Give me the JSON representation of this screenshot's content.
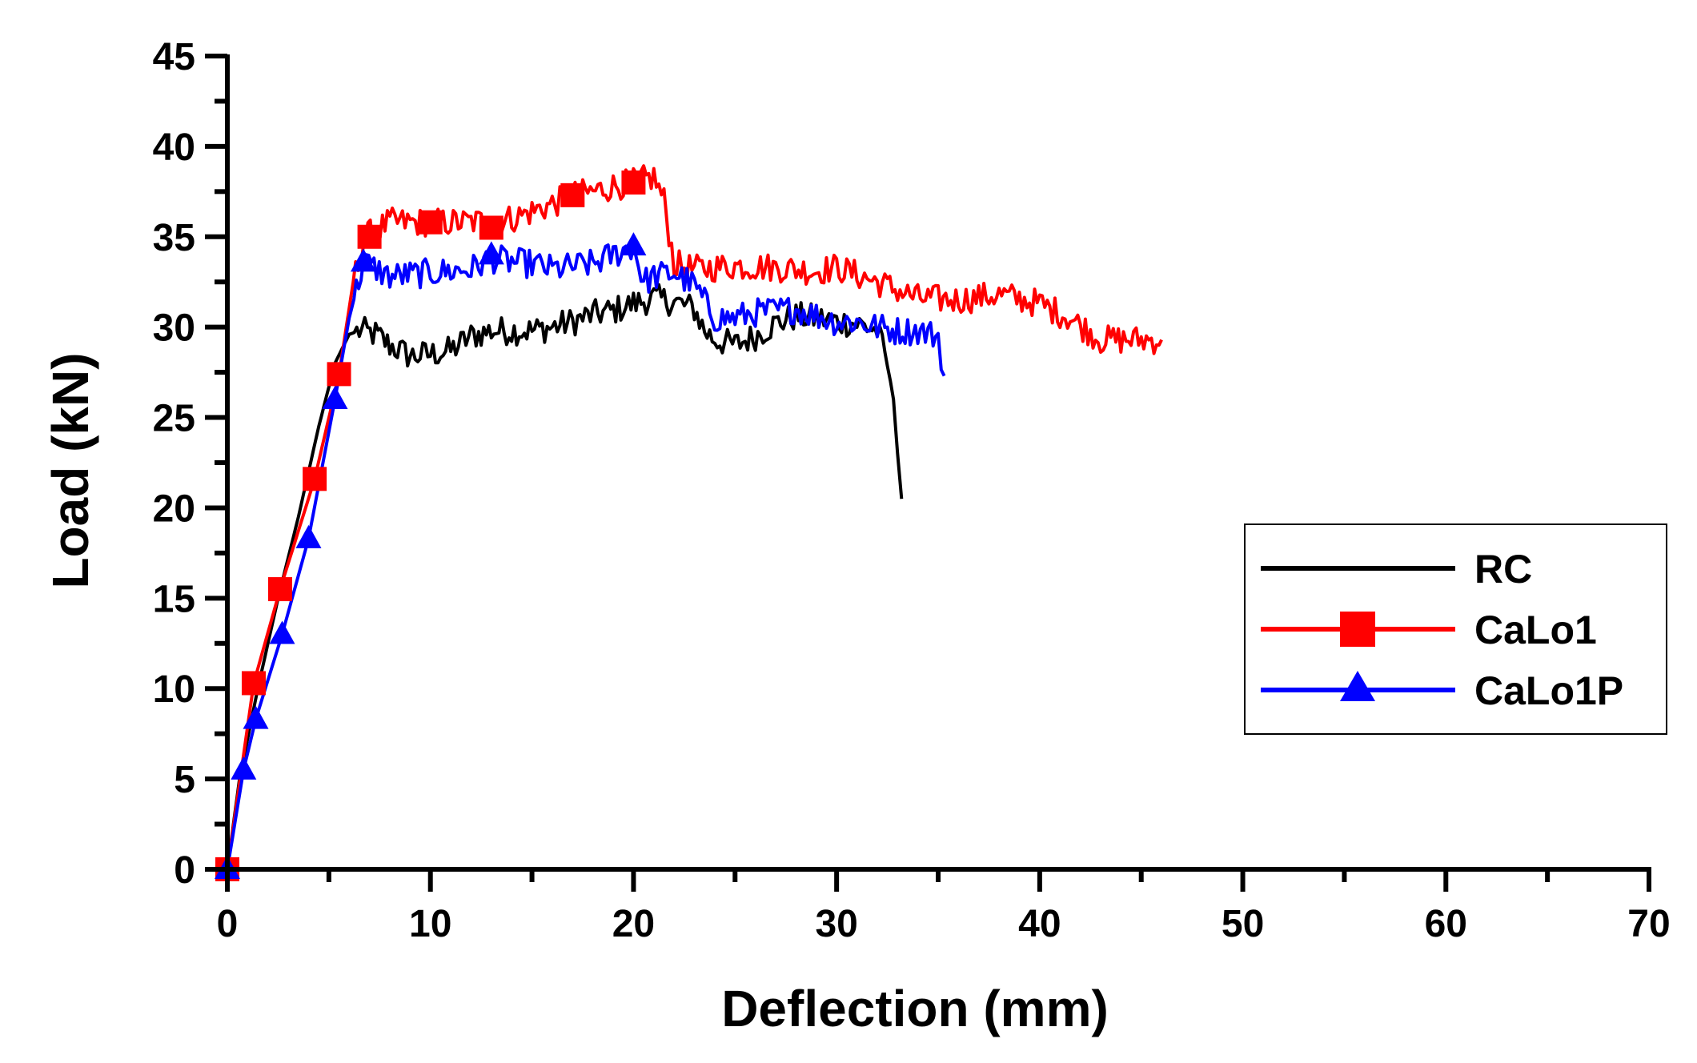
{
  "chart_data": {
    "type": "line",
    "title": "",
    "xlabel": "Deflection (mm)",
    "ylabel": "Load (kN)",
    "xlim": [
      0,
      70
    ],
    "ylim": [
      0,
      45
    ],
    "xticks": [
      0,
      10,
      20,
      30,
      40,
      50,
      60,
      70
    ],
    "yticks": [
      0,
      5,
      10,
      15,
      20,
      25,
      30,
      35,
      40,
      45
    ],
    "grid": false,
    "legend_position": "right-center",
    "series": [
      {
        "name": "RC",
        "color": "#000000",
        "marker": "none",
        "x": [
          0,
          0.6,
          1.5,
          2.5,
          3.5,
          4.5,
          5.3,
          6,
          6.5,
          7.3,
          8,
          9,
          10,
          11,
          12,
          13,
          14,
          15,
          16,
          17,
          18,
          19,
          20,
          21,
          22,
          23,
          23.5,
          24,
          25,
          26,
          27,
          28,
          29,
          30,
          31,
          32,
          32.5,
          32.8,
          33,
          33.2
        ],
        "y": [
          0,
          5,
          10,
          15,
          19.5,
          24.5,
          28,
          29.6,
          29.8,
          29.6,
          29,
          28.4,
          28.5,
          28.7,
          29.5,
          29.8,
          29.8,
          29.8,
          30,
          30.3,
          30.7,
          30.9,
          31.3,
          31.6,
          31.4,
          31,
          29.8,
          29.3,
          29,
          29.5,
          30.2,
          30.6,
          30.5,
          30.3,
          30.2,
          29.8,
          28,
          26,
          23,
          20.5
        ]
      },
      {
        "name": "CaLo1",
        "color": "#ff0000",
        "marker": "square",
        "x": [
          0,
          1.3,
          2.6,
          4.3,
          5.5,
          6.2,
          6.8,
          8,
          10,
          12,
          14,
          16,
          17,
          18,
          19,
          20,
          21,
          21.5,
          22,
          23,
          24,
          25,
          27,
          29,
          30,
          32,
          34,
          36,
          38,
          40,
          41.5,
          43,
          44.5,
          46
        ],
        "y": [
          0,
          10.3,
          15.5,
          21.6,
          27.4,
          32.5,
          35,
          35.8,
          35.8,
          35.8,
          36,
          36.8,
          37.3,
          37.5,
          37.8,
          38,
          38.3,
          37,
          33.5,
          33.2,
          33.3,
          33.4,
          33.3,
          33.1,
          33.3,
          32.5,
          31.6,
          31.5,
          31.8,
          31.3,
          30.5,
          29.3,
          29.3,
          29.3
        ]
      },
      {
        "name": "CaLo1P",
        "color": "#0000ff",
        "marker": "triangle",
        "x": [
          0,
          0.8,
          1.4,
          2.7,
          4,
          5.3,
          6,
          6.7,
          8,
          10,
          12,
          13,
          14,
          15,
          16,
          18,
          19,
          20,
          20.5,
          21,
          22,
          23,
          24,
          25,
          26,
          28,
          30,
          31,
          32,
          33,
          34,
          35,
          35.3
        ],
        "y": [
          0,
          5.5,
          8.3,
          13,
          18.3,
          26,
          30.5,
          33.6,
          32.8,
          33,
          33.2,
          33.8,
          33.6,
          33.5,
          33.2,
          33.5,
          34,
          34.5,
          32.5,
          32.8,
          33,
          32.3,
          30.5,
          30.5,
          30.8,
          31,
          30.3,
          30.3,
          30,
          29.8,
          29.8,
          29.5,
          27.3
        ]
      }
    ]
  }
}
